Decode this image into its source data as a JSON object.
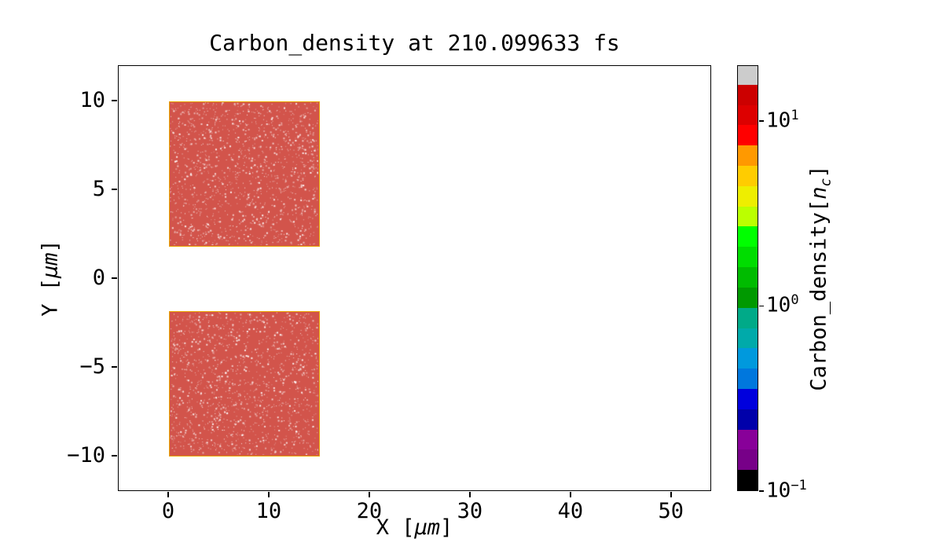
{
  "figure": {
    "background": "#ffffff"
  },
  "chart_data": {
    "type": "heatmap",
    "title": "Carbon_density at 210.099633 fs",
    "xlabel": {
      "pre": "X [",
      "math": "μm",
      "post": "]"
    },
    "ylabel": {
      "pre": "Y [",
      "math": "μm",
      "post": "]"
    },
    "xlim": [
      -5,
      54
    ],
    "ylim": [
      -12,
      12
    ],
    "x_ticks": [
      0,
      10,
      20,
      30,
      40,
      50
    ],
    "y_ticks": [
      10,
      5,
      0,
      -5,
      -10
    ],
    "grid": false,
    "plot_background": "#ffffff",
    "blocks": [
      {
        "x0": 0,
        "x1": 15,
        "y0": 1.8,
        "y1": 10,
        "value_nc": 12,
        "fill": "#d2544b",
        "edge": "#e9a400",
        "speckle": "#ffffff"
      },
      {
        "x0": 0,
        "x1": 15,
        "y0": -10,
        "y1": -1.8,
        "value_nc": 12,
        "fill": "#d2544b",
        "edge": "#e9a400",
        "speckle": "#ffffff"
      }
    ],
    "colorbar": {
      "label_pre": "Carbon_density[",
      "label_math": "n",
      "label_sub": "c",
      "label_post": "]",
      "scale": "log",
      "vmin": 0.1,
      "vmax": 20,
      "colormap": "nipy_spectral",
      "band_colors": [
        "#000000",
        "#770088",
        "#880099",
        "#0000AA",
        "#0000DD",
        "#0077DD",
        "#0099DD",
        "#00AAAA",
        "#00AA88",
        "#009900",
        "#00BB00",
        "#00DD00",
        "#00FF00",
        "#BBFF00",
        "#EEEE00",
        "#FFCC00",
        "#FF9900",
        "#FF0000",
        "#DD0000",
        "#CC0000",
        "#CCCCCC"
      ],
      "ticks": [
        {
          "value": 10,
          "base": "10",
          "exp": "1"
        },
        {
          "value": 1,
          "base": "10",
          "exp": "0"
        },
        {
          "value": 0.1,
          "base": "10",
          "exp": "−1"
        }
      ]
    }
  }
}
